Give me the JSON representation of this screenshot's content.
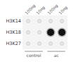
{
  "chart_data": {
    "type": "dot_matrix",
    "rows": [
      "H3K14",
      "H3K18",
      "H3K27"
    ],
    "categories": [
      "100ng",
      "10ng",
      "100ng",
      "10ng"
    ],
    "groups": [
      {
        "name": "control",
        "range": [
          0,
          1
        ]
      },
      {
        "name": "ac",
        "range": [
          2,
          3
        ]
      }
    ],
    "cells": [
      [
        0,
        0,
        0,
        0
      ],
      [
        0,
        0,
        1,
        1
      ],
      [
        0,
        0,
        0,
        0
      ]
    ],
    "color": "#111111"
  }
}
